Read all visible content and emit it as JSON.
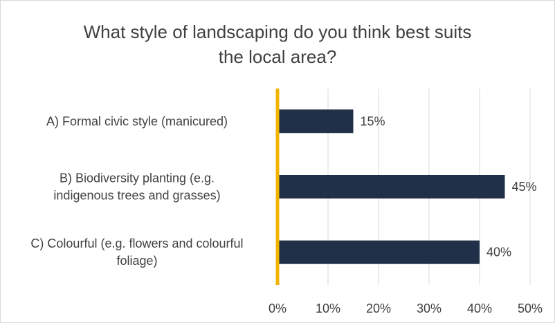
{
  "chart_data": {
    "type": "bar",
    "orientation": "horizontal",
    "title_lines": [
      "What style of landscaping do you think best suits",
      "the local area?"
    ],
    "categories": [
      [
        "A) Formal civic style (manicured)"
      ],
      [
        "B) Biodiversity planting (e.g.",
        "indigenous trees and grasses)"
      ],
      [
        "C) Colourful (e.g. flowers and colourful",
        "foliage)"
      ]
    ],
    "values": [
      15,
      45,
      40
    ],
    "data_labels": [
      "15%",
      "45%",
      "40%"
    ],
    "xlim": [
      0,
      50
    ],
    "xticks": [
      0,
      10,
      20,
      30,
      40,
      50
    ],
    "xtick_labels": [
      "0%",
      "10%",
      "20%",
      "30%",
      "40%",
      "50%"
    ],
    "grid": true,
    "bar_color": "#203048",
    "axis_color": "#f0b400",
    "legend": "none"
  }
}
